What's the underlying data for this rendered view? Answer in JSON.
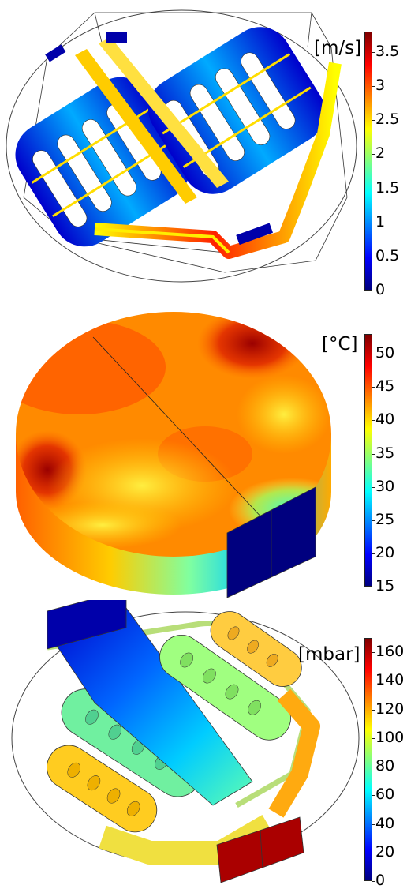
{
  "panels": {
    "velocity": {
      "unit": "[m/s]",
      "ticks": [
        "3.5",
        "3",
        "2.5",
        "2",
        "1.5",
        "1",
        "0.5",
        "0"
      ],
      "tick_values": [
        3.5,
        3,
        2.5,
        2,
        1.5,
        1,
        0.5,
        0
      ],
      "range": [
        0,
        3.8
      ],
      "colormap": [
        "#00007f",
        "#0000ff",
        "#0080ff",
        "#00ffff",
        "#80ff80",
        "#ffff00",
        "#ff8000",
        "#ff0000",
        "#7f0000"
      ]
    },
    "temperature": {
      "unit": "[°C]",
      "ticks": [
        "50",
        "45",
        "40",
        "35",
        "30",
        "25",
        "20",
        "15"
      ],
      "tick_values": [
        50,
        45,
        40,
        35,
        30,
        25,
        20,
        15
      ],
      "range": [
        15,
        53
      ],
      "colormap": [
        "#00007f",
        "#0000ff",
        "#0080ff",
        "#00ffff",
        "#80ff80",
        "#ffff00",
        "#ff8000",
        "#ff0000",
        "#7f0000"
      ]
    },
    "pressure": {
      "unit": "[mbar]",
      "ticks": [
        "160",
        "140",
        "120",
        "100",
        "80",
        "60",
        "40",
        "20",
        "0"
      ],
      "tick_values": [
        160,
        140,
        120,
        100,
        80,
        60,
        40,
        20,
        0
      ],
      "range": [
        0,
        170
      ],
      "colormap": [
        "#00007f",
        "#0000ff",
        "#0080ff",
        "#00ffff",
        "#80ff80",
        "#ffff00",
        "#ff8000",
        "#ff0000",
        "#7f0000"
      ]
    }
  }
}
